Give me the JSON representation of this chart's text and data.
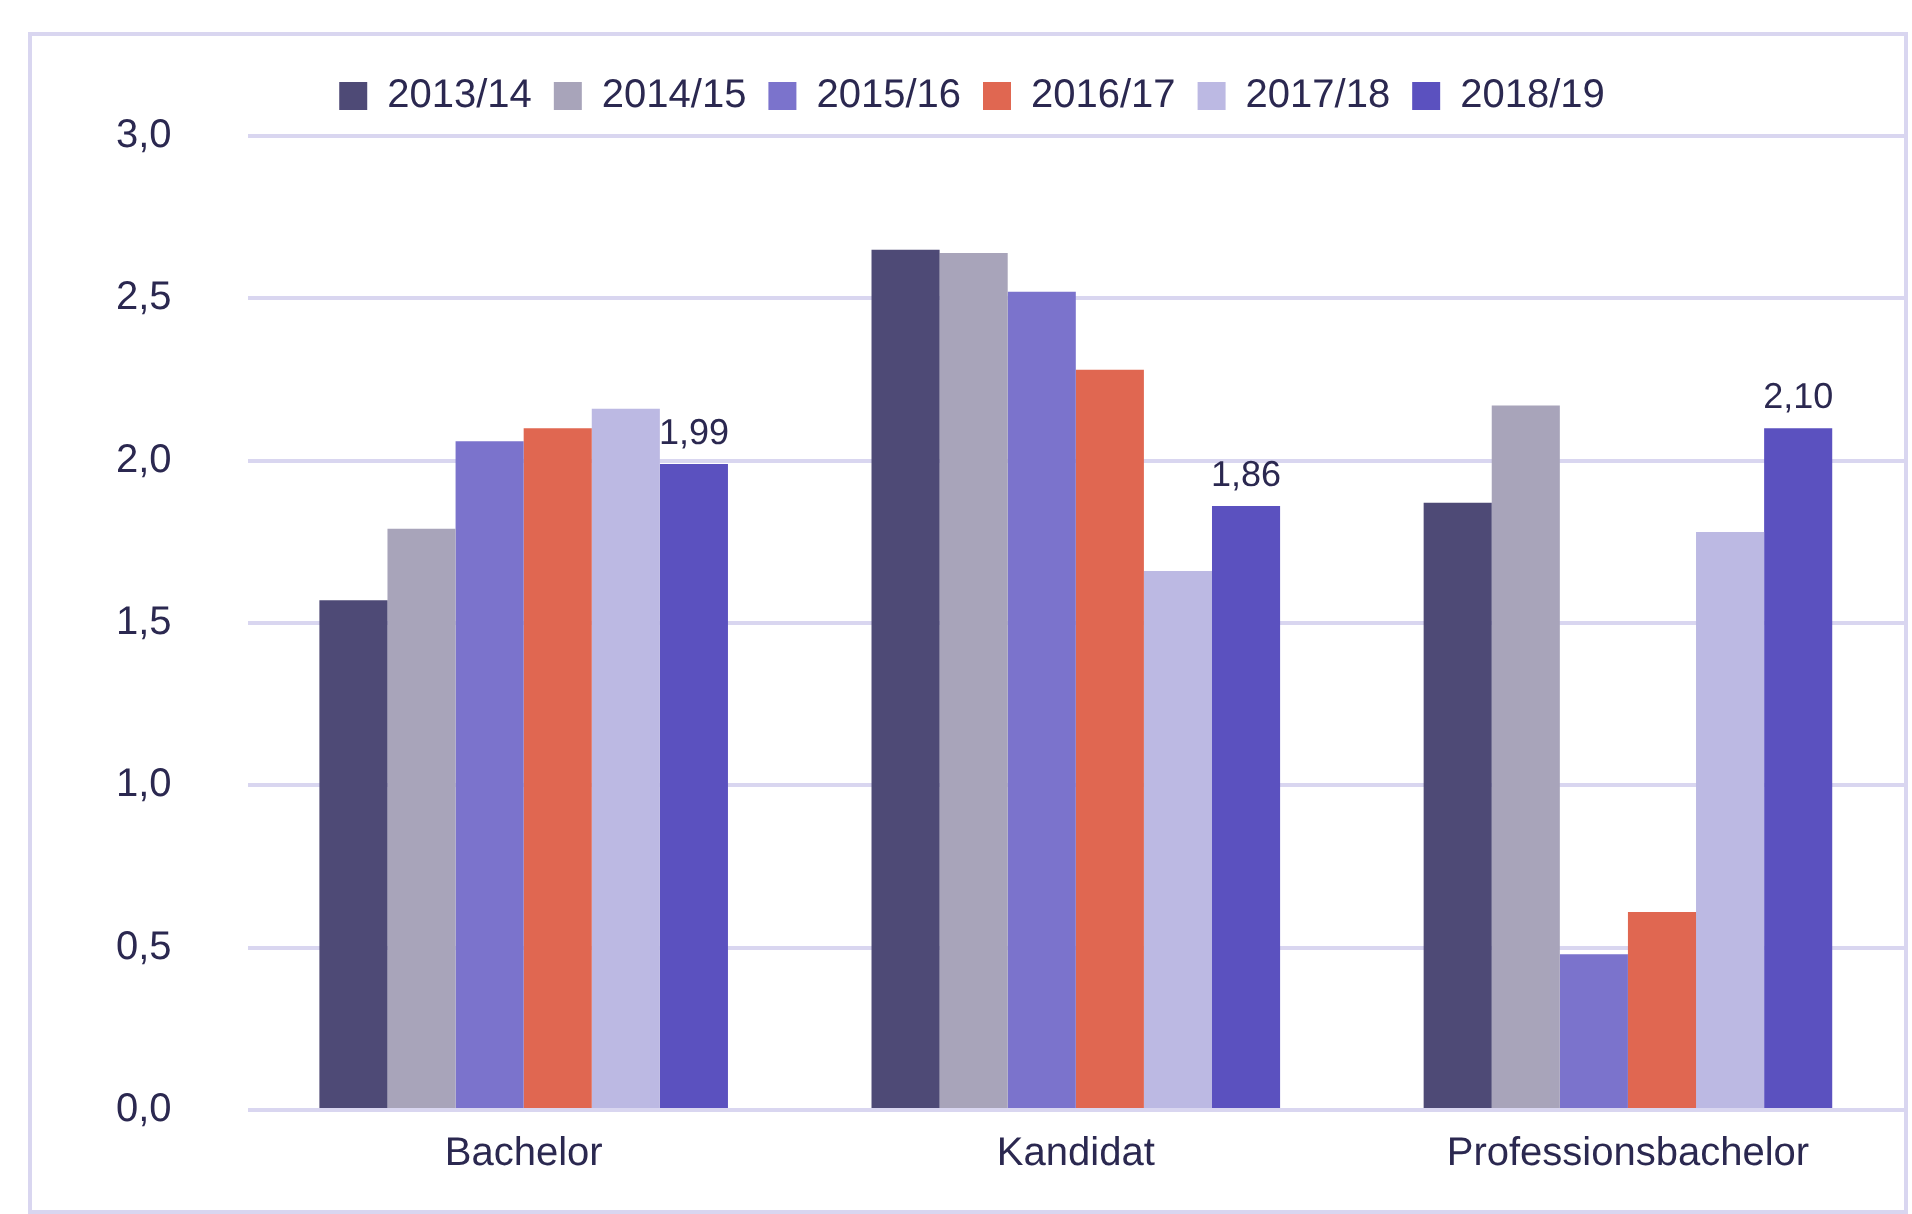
{
  "chart_data": {
    "type": "bar",
    "categories": [
      "Bachelor",
      "Kandidat",
      "Professionsbachelor"
    ],
    "series": [
      {
        "name": "2013/14",
        "color": "#4e4a76",
        "values": [
          1.57,
          2.65,
          1.87
        ]
      },
      {
        "name": "2014/15",
        "color": "#a8a4ba",
        "values": [
          1.79,
          2.64,
          2.17
        ]
      },
      {
        "name": "2015/16",
        "color": "#7b73cc",
        "values": [
          2.06,
          2.52,
          0.48
        ]
      },
      {
        "name": "2016/17",
        "color": "#e06751",
        "values": [
          2.1,
          2.28,
          0.61
        ]
      },
      {
        "name": "2017/18",
        "color": "#bcb9e3",
        "values": [
          2.16,
          1.66,
          1.78
        ]
      },
      {
        "name": "2018/19",
        "color": "#5b51bf",
        "values": [
          1.99,
          1.86,
          2.1
        ],
        "value_labels": [
          "1,99",
          "1,86",
          "2,10"
        ]
      }
    ],
    "ylim": [
      0,
      3
    ],
    "yticks": [
      {
        "value": 0,
        "label": "0,0"
      },
      {
        "value": 0.5,
        "label": "0,5"
      },
      {
        "value": 1,
        "label": "1,0"
      },
      {
        "value": 1.5,
        "label": "1,5"
      },
      {
        "value": 2,
        "label": "2,0"
      },
      {
        "value": 2.5,
        "label": "2,5"
      },
      {
        "value": 3,
        "label": "3,0"
      }
    ],
    "grid": "y",
    "legend": "top"
  }
}
